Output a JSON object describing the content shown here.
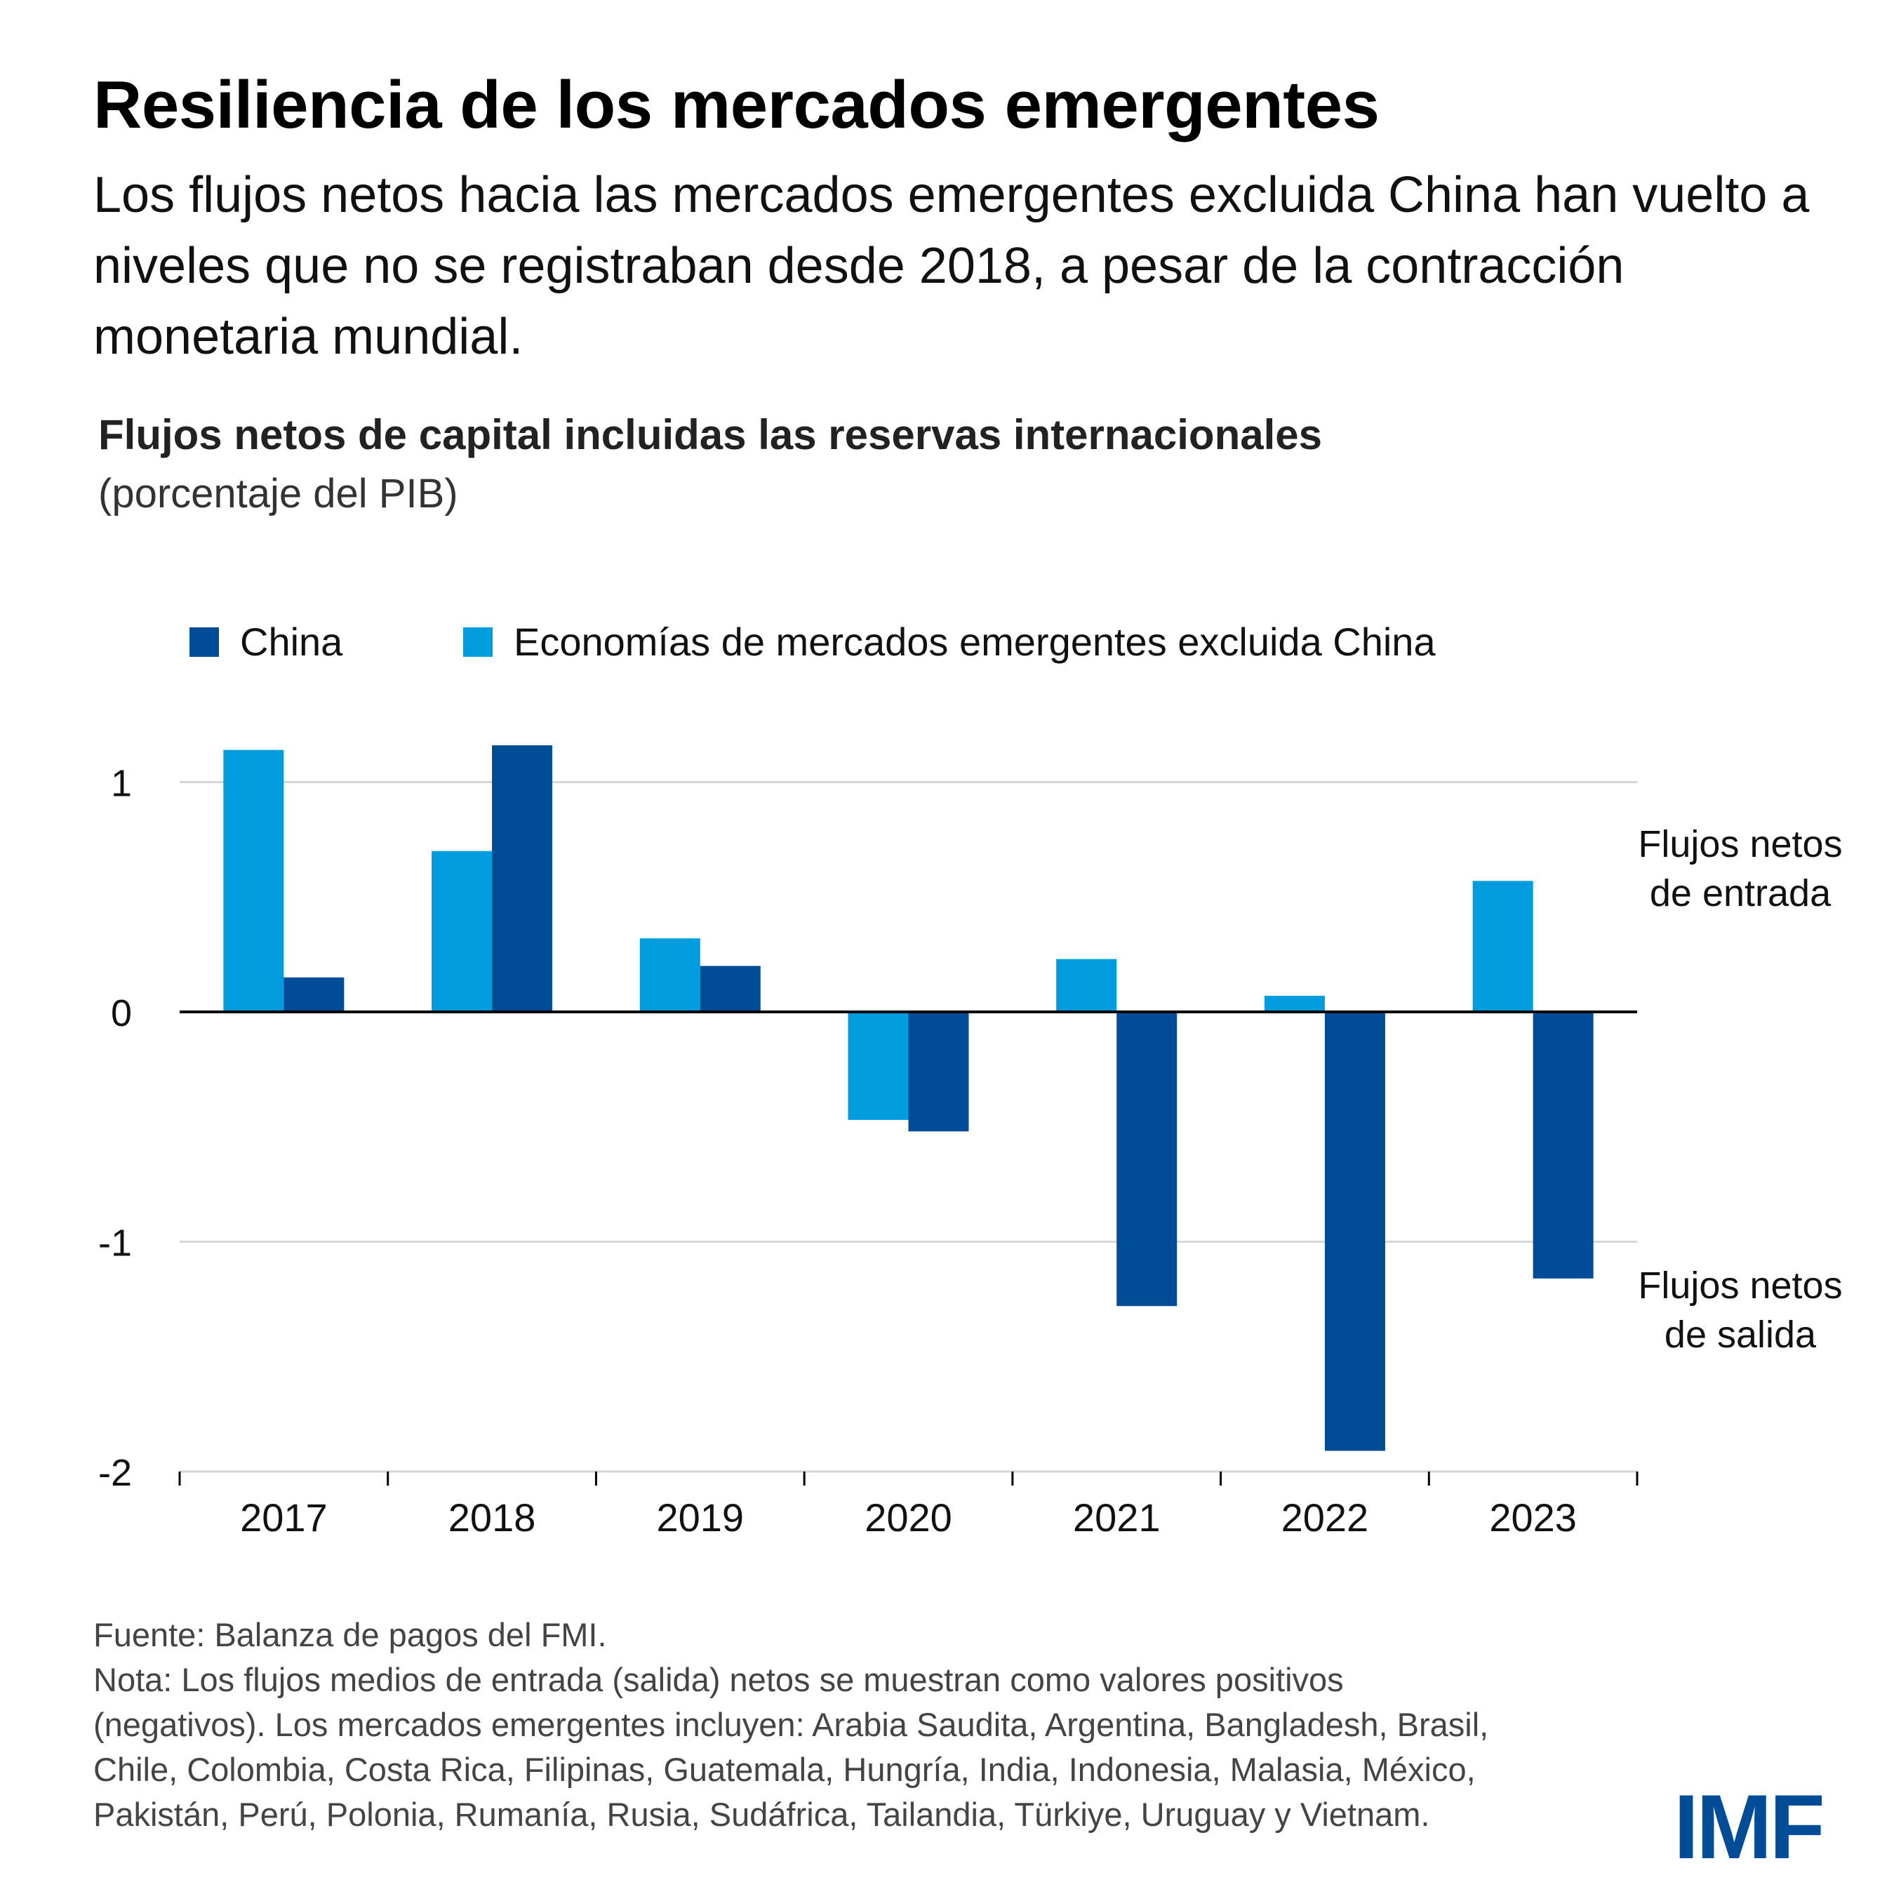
{
  "header": {
    "title": "Resiliencia de los mercados emergentes",
    "subtitle": "Los flujos netos hacia las mercados emergentes excluida China han vuelto a niveles que no se registraban desde 2018, a pesar de la contracción monetaria mundial."
  },
  "chart_title": "Flujos netos de capital incluidas las reservas internacionales",
  "chart_unit": "(porcentaje del PIB)",
  "annotations": {
    "inflow_line1": "Flujos netos",
    "inflow_line2": "de entrada",
    "outflow_line1": "Flujos netos",
    "outflow_line2": "de salida"
  },
  "footer": {
    "source": "Fuente: Balanza de pagos del FMI.",
    "note_lines": [
      "Nota: Los flujos medios de entrada (salida) netos se muestran como valores positivos",
      "(negativos). Los mercados emergentes incluyen: Arabia Saudita, Argentina, Bangladesh, Brasil,",
      "Chile, Colombia, Costa Rica, Filipinas, Guatemala, Hungría, India, Indonesia, Malasia, México,",
      "Pakistán, Perú, Polonia, Rumanía, Rusia, Sudáfrica, Tailandia, Türkiye, Uruguay y Vietnam."
    ]
  },
  "logo": "IMF",
  "colors": {
    "china": "#004C97",
    "em_ex_china": "#009CDE",
    "gridline": "#D6D6D6",
    "zero_line": "#000000"
  },
  "chart_data": {
    "type": "bar",
    "title": "Flujos netos de capital incluidas las reservas internacionales",
    "subtitle": "(porcentaje del PIB)",
    "xlabel": "",
    "ylabel": "",
    "categories": [
      "2017",
      "2018",
      "2019",
      "2020",
      "2021",
      "2022",
      "2023"
    ],
    "series": [
      {
        "name": "Economías de mercados emergentes excluida China",
        "color": "#009CDE",
        "values": [
          1.14,
          0.7,
          0.32,
          -0.47,
          0.23,
          0.07,
          0.57
        ]
      },
      {
        "name": "China",
        "color": "#004C97",
        "values": [
          0.15,
          1.16,
          0.2,
          -0.52,
          -1.28,
          -1.91,
          -1.16
        ]
      }
    ],
    "legend": {
      "placement": "top-left",
      "entries": [
        "China",
        "Economías de mercados emergentes excluida China"
      ]
    },
    "yticks": [
      1,
      0,
      -1,
      -2
    ],
    "ytick_labels": [
      "1",
      "0",
      "-1",
      "-2"
    ],
    "ylim": [
      -2,
      1.25
    ],
    "grid": true
  }
}
